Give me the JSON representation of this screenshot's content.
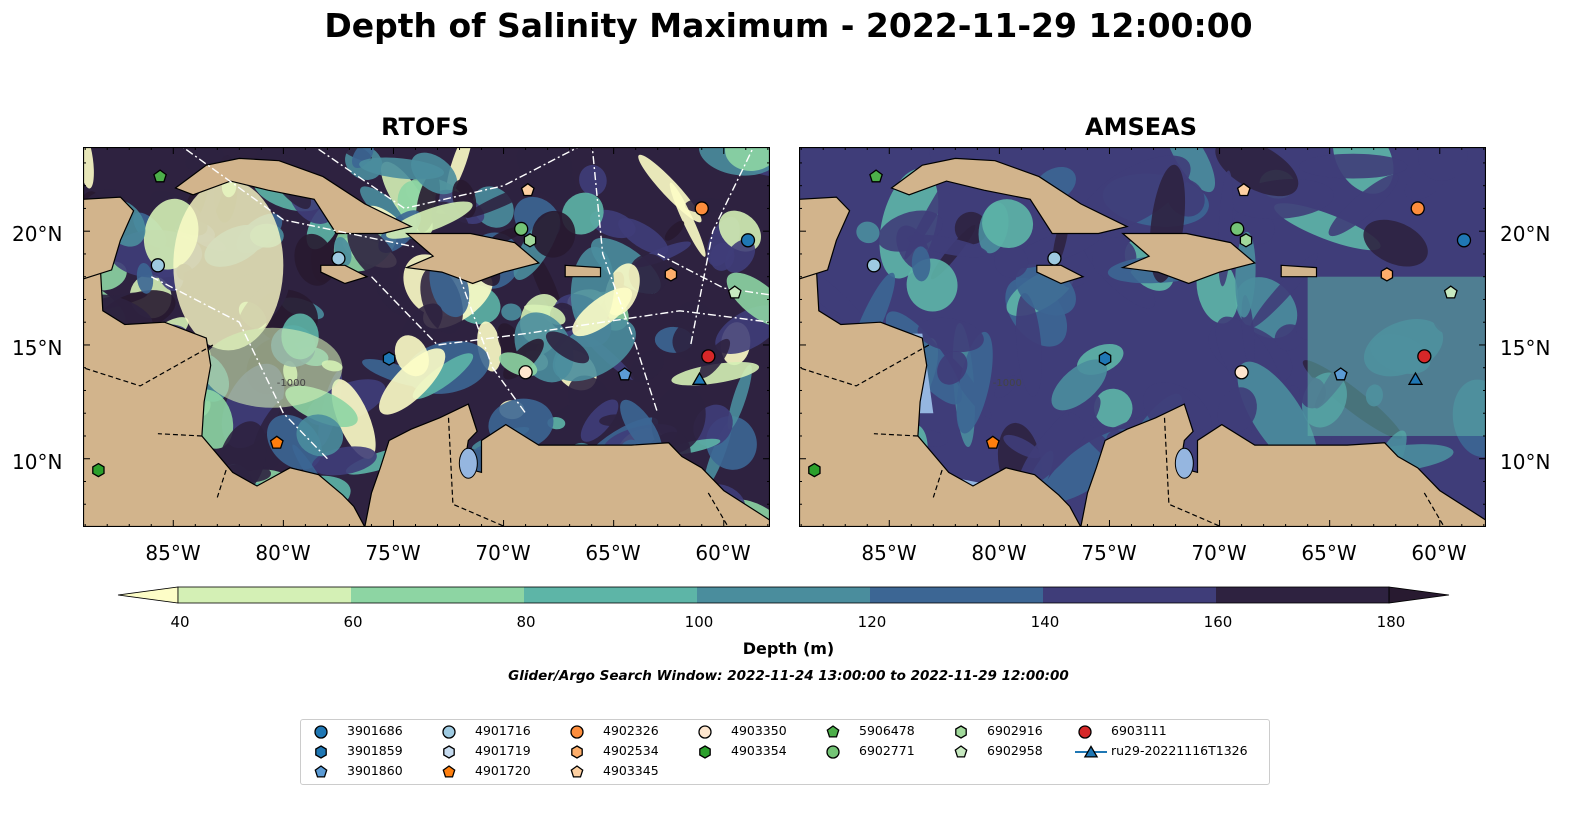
{
  "title": "Depth of Salinity Maximum - 2022-11-29 12:00:00",
  "panels": [
    {
      "title": "RTOFS"
    },
    {
      "title": "AMSEAS"
    }
  ],
  "lat_labels": [
    "20°N",
    "15°N",
    "10°N"
  ],
  "lon_labels": [
    "85°W",
    "80°W",
    "75°W",
    "70°W",
    "65°W",
    "60°W"
  ],
  "colorbar": {
    "ticks": [
      "40",
      "60",
      "80",
      "100",
      "120",
      "140",
      "160",
      "180"
    ],
    "label": "Depth (m)",
    "colors": [
      "#fdfdc7",
      "#d4f0b5",
      "#8dd5a3",
      "#5db5a7",
      "#4a8d9d",
      "#3c6694",
      "#3f3d79",
      "#2e2240",
      "#281a30"
    ]
  },
  "search_window": "Glider/Argo Search Window: 2022-11-24 13:00:00 to 2022-11-29 12:00:00",
  "contour_label": "-1000",
  "legend": [
    {
      "label": "3901686",
      "marker": "circle",
      "color": "#1f77b4"
    },
    {
      "label": "3901859",
      "marker": "hexagon",
      "color": "#1f77b4"
    },
    {
      "label": "3901860",
      "marker": "pentagon",
      "color": "#5b9bd5"
    },
    {
      "label": "4901716",
      "marker": "circle",
      "color": "#9ecae1"
    },
    {
      "label": "4901719",
      "marker": "hexagon",
      "color": "#c6dbef"
    },
    {
      "label": "4901720",
      "marker": "pentagon",
      "color": "#ff7f0e"
    },
    {
      "label": "4902326",
      "marker": "circle",
      "color": "#fd8d3c"
    },
    {
      "label": "4902534",
      "marker": "hexagon",
      "color": "#fdae6b"
    },
    {
      "label": "4903345",
      "marker": "pentagon",
      "color": "#fdd0a2"
    },
    {
      "label": "4903350",
      "marker": "circle",
      "color": "#fee6ce"
    },
    {
      "label": "4903354",
      "marker": "hexagon",
      "color": "#2ca02c"
    },
    {
      "label": "5906478",
      "marker": "pentagon",
      "color": "#4daf4a"
    },
    {
      "label": "6902771",
      "marker": "circle",
      "color": "#74c476"
    },
    {
      "label": "6902916",
      "marker": "hexagon",
      "color": "#a1d99b"
    },
    {
      "label": "6902958",
      "marker": "pentagon",
      "color": "#c7e9c0"
    },
    {
      "label": "6903111",
      "marker": "circle",
      "color": "#d62728"
    },
    {
      "label": "ru29-20221116T1326",
      "marker": "triangle",
      "color": "#1f77b4"
    }
  ],
  "markers": [
    {
      "id": "5906478",
      "lon": -85.6,
      "lat": 22.4
    },
    {
      "id": "4901716",
      "lon": -85.7,
      "lat": 18.5
    },
    {
      "id": "4901716b",
      "lon": -77.5,
      "lat": 18.8
    },
    {
      "id": "3901859",
      "lon": -75.2,
      "lat": 14.4
    },
    {
      "id": "4903345",
      "lon": -68.9,
      "lat": 21.8
    },
    {
      "id": "6902771",
      "lon": -69.2,
      "lat": 20.1
    },
    {
      "id": "6902916",
      "lon": -68.8,
      "lat": 19.6
    },
    {
      "id": "4903350",
      "lon": -69.0,
      "lat": 13.8
    },
    {
      "id": "4902326",
      "lon": -61.0,
      "lat": 21.0
    },
    {
      "id": "4902534",
      "lon": -62.4,
      "lat": 18.1
    },
    {
      "id": "3901686",
      "lon": -58.9,
      "lat": 19.6
    },
    {
      "id": "6902958",
      "lon": -59.5,
      "lat": 17.3
    },
    {
      "id": "3901860",
      "lon": -64.5,
      "lat": 13.7
    },
    {
      "id": "6903111",
      "lon": -60.7,
      "lat": 14.5
    },
    {
      "id": "ru29",
      "lon": -61.1,
      "lat": 13.5
    },
    {
      "id": "4901720",
      "lon": -80.3,
      "lat": 10.7
    },
    {
      "id": "4903354",
      "lon": -88.4,
      "lat": 9.5
    }
  ]
}
